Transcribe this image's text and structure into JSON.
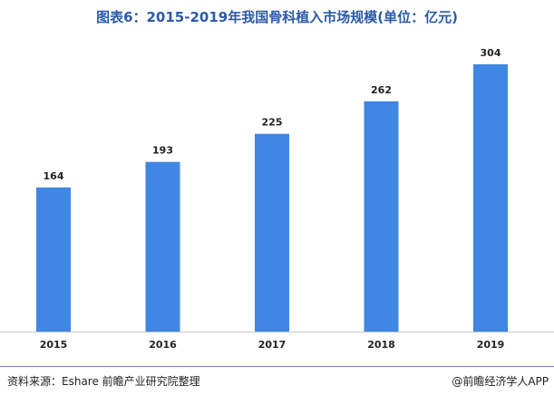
{
  "title": "图表6：2015-2019年我国骨科植入市场规模(单位：亿元)",
  "source": "资料来源：Eshare 前瞻产业研究院整理",
  "credit": "@前瞻经济学人APP",
  "colors": {
    "bar": "#3f87e3",
    "title": "#2b5aa8",
    "axis": "#c8c8c8"
  },
  "chart_data": {
    "type": "bar",
    "categories": [
      "2015",
      "2016",
      "2017",
      "2018",
      "2019"
    ],
    "values": [
      164,
      193,
      225,
      262,
      304
    ],
    "title": "图表6：2015-2019年我国骨科植入市场规模(单位：亿元)",
    "xlabel": "",
    "ylabel": "",
    "ylim": [
      0,
      320
    ],
    "grid": false,
    "legend": "none",
    "data_labels": true
  }
}
